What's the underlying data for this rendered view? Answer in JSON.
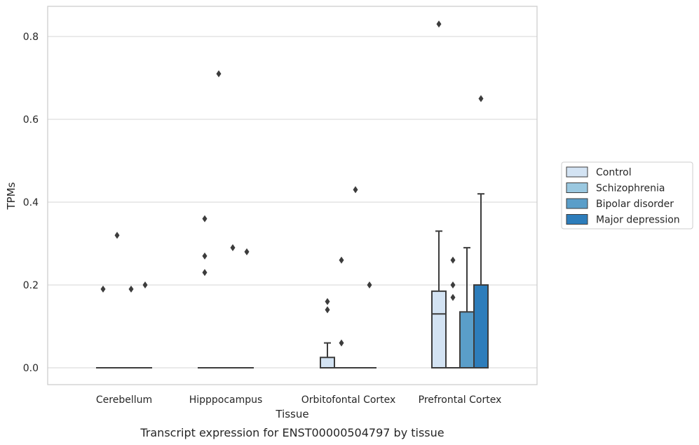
{
  "chart_data": {
    "type": "boxplot",
    "xlabel": "Tissue",
    "ylabel": "TPMs",
    "caption": "Transcript expression for ENST00000504797 by tissue",
    "ylim": [
      -0.04,
      0.875
    ],
    "yticks": [
      "0.0",
      "0.2",
      "0.4",
      "0.6",
      "0.8"
    ],
    "ytick_values": [
      0.0,
      0.2,
      0.4,
      0.6,
      0.8
    ],
    "grid": "horizontal",
    "legend_position": "right",
    "categories": [
      "Cerebellum",
      "Hipppocampus",
      "Orbitofontal Cortex",
      "Prefrontal Cortex"
    ],
    "series": [
      {
        "name": "Control",
        "color": "#d3e3f3",
        "boxes": [
          {
            "q1": 0,
            "median": 0,
            "q3": 0,
            "whislo": 0,
            "whishi": 0,
            "fliers": [
              0.19
            ]
          },
          {
            "q1": 0,
            "median": 0,
            "q3": 0,
            "whislo": 0,
            "whishi": 0,
            "fliers": [
              0.36,
              0.27,
              0.23
            ]
          },
          {
            "q1": 0,
            "median": 0,
            "q3": 0.025,
            "whislo": 0,
            "whishi": 0.06,
            "fliers": [
              0.16,
              0.14
            ]
          },
          {
            "q1": 0,
            "median": 0.13,
            "q3": 0.185,
            "whislo": 0,
            "whishi": 0.33,
            "fliers": [
              0.83
            ]
          }
        ]
      },
      {
        "name": "Schizophrenia",
        "color": "#9ac8e0",
        "boxes": [
          {
            "q1": 0,
            "median": 0,
            "q3": 0,
            "whislo": 0,
            "whishi": 0,
            "fliers": [
              0.32
            ]
          },
          {
            "q1": 0,
            "median": 0,
            "q3": 0,
            "whislo": 0,
            "whishi": 0,
            "fliers": [
              0.71
            ]
          },
          {
            "q1": 0,
            "median": 0,
            "q3": 0,
            "whislo": 0,
            "whishi": 0,
            "fliers": [
              0.26,
              0.06
            ]
          },
          {
            "q1": 0,
            "median": 0,
            "q3": 0,
            "whislo": 0,
            "whishi": 0,
            "fliers": [
              0.26,
              0.2,
              0.17
            ]
          }
        ]
      },
      {
        "name": "Bipolar disorder",
        "color": "#5a9ec9",
        "boxes": [
          {
            "q1": 0,
            "median": 0,
            "q3": 0,
            "whislo": 0,
            "whishi": 0,
            "fliers": [
              0.19
            ]
          },
          {
            "q1": 0,
            "median": 0,
            "q3": 0,
            "whislo": 0,
            "whishi": 0,
            "fliers": [
              0.29
            ]
          },
          {
            "q1": 0,
            "median": 0,
            "q3": 0,
            "whislo": 0,
            "whishi": 0,
            "fliers": [
              0.43
            ]
          },
          {
            "q1": 0,
            "median": 0,
            "q3": 0.135,
            "whislo": 0,
            "whishi": 0.29,
            "fliers": []
          }
        ]
      },
      {
        "name": "Major depression",
        "color": "#2d7dbb",
        "boxes": [
          {
            "q1": 0,
            "median": 0,
            "q3": 0,
            "whislo": 0,
            "whishi": 0,
            "fliers": [
              0.2
            ]
          },
          {
            "q1": 0,
            "median": 0,
            "q3": 0,
            "whislo": 0,
            "whishi": 0,
            "fliers": [
              0.28
            ]
          },
          {
            "q1": 0,
            "median": 0,
            "q3": 0,
            "whislo": 0,
            "whishi": 0,
            "fliers": [
              0.2
            ]
          },
          {
            "q1": 0,
            "median": 0,
            "q3": 0.2,
            "whislo": 0,
            "whishi": 0.42,
            "fliers": [
              0.65
            ]
          }
        ]
      }
    ]
  }
}
